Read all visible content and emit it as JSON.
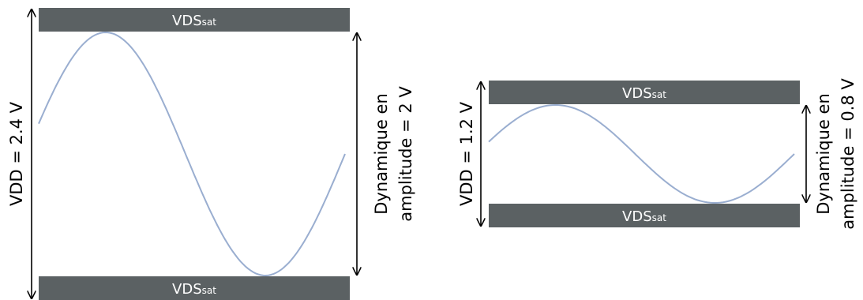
{
  "panels": [
    {
      "vdd_label": "VDD = 2.4 V",
      "top_rail": {
        "main": "VDS",
        "sub": "sat"
      },
      "bottom_rail": {
        "main": "VDS",
        "sub": "sat"
      },
      "dynamic_line1": "Dynamique en",
      "dynamic_line2": "amplitude = 2 V"
    },
    {
      "vdd_label": "VDD = 1.2 V",
      "top_rail": {
        "main": "VDS",
        "sub": "sat"
      },
      "bottom_rail": {
        "main": "VDS",
        "sub": "sat"
      },
      "dynamic_line1": "Dynamique en",
      "dynamic_line2": "amplitude = 0.8 V"
    }
  ],
  "colors": {
    "rail": "#5b6163",
    "wave": "#9aaed0",
    "arrow": "#000000"
  }
}
